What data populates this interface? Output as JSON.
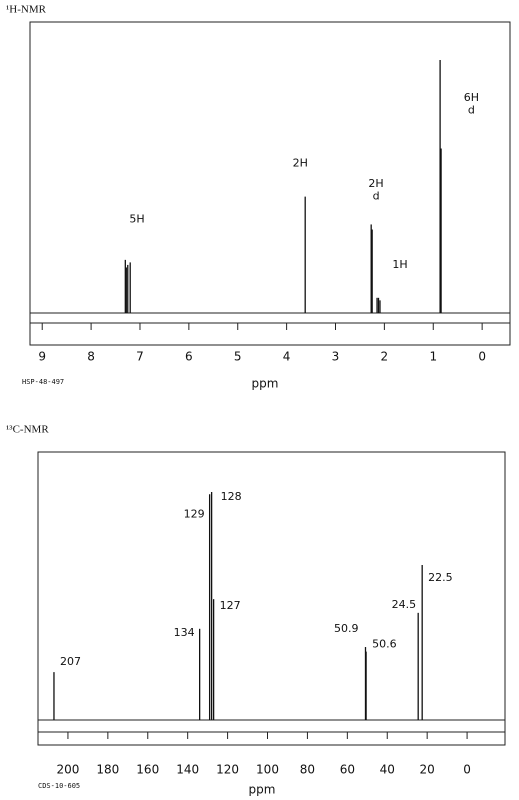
{
  "chart_data": [
    {
      "type": "spectrum",
      "title": "¹H-NMR",
      "x_label": "ppm",
      "note": "HSP-48-497",
      "x": [
        7.3,
        7.28,
        7.25,
        7.2,
        3.62,
        2.27,
        2.25,
        2.15,
        2.12,
        2.09,
        0.86,
        0.84
      ],
      "values": [
        21,
        18,
        19,
        20,
        46,
        35,
        33,
        6,
        6,
        5,
        100,
        65
      ],
      "color": "#111111",
      "xlim": [
        9.25,
        -0.57
      ],
      "ylim": [
        0,
        100
      ],
      "xticks": [
        9,
        8,
        7,
        6,
        5,
        4,
        3,
        2,
        1,
        0
      ],
      "annotations": [
        {
          "text": "5H",
          "x": 7.06,
          "y": 37
        },
        {
          "text": "2H",
          "x": 3.72,
          "y": 59
        },
        {
          "text": "2H",
          "x": 2.17,
          "y": 51
        },
        {
          "text": "d",
          "x": 2.17,
          "y": 46
        },
        {
          "text": "1H",
          "x": 1.68,
          "y": 19
        },
        {
          "text": "6H",
          "x": 0.22,
          "y": 85
        },
        {
          "text": "d",
          "x": 0.22,
          "y": 80
        }
      ]
    },
    {
      "type": "spectrum",
      "title": "¹³C-NMR",
      "x_label": "ppm",
      "note": "CDS-10-605",
      "x": [
        207,
        134,
        129,
        128,
        127,
        50.9,
        50.6,
        24.5,
        22.5
      ],
      "values": [
        21,
        40,
        99,
        100,
        53,
        32,
        30,
        47,
        68
      ],
      "color": "#111111",
      "xlim": [
        215,
        -19
      ],
      "ylim": [
        0,
        100
      ],
      "xticks": [
        200,
        180,
        160,
        140,
        120,
        100,
        80,
        60,
        40,
        20,
        0
      ],
      "peak_labels": true
    }
  ]
}
